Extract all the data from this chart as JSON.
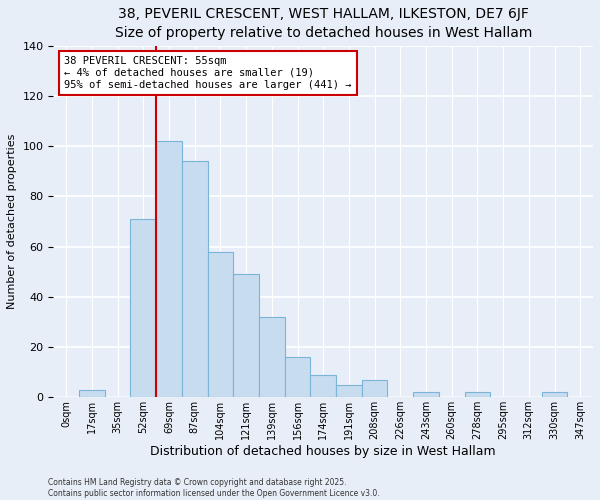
{
  "title": "38, PEVERIL CRESCENT, WEST HALLAM, ILKESTON, DE7 6JF",
  "subtitle": "Size of property relative to detached houses in West Hallam",
  "xlabel": "Distribution of detached houses by size in West Hallam",
  "ylabel": "Number of detached properties",
  "bin_labels": [
    "0sqm",
    "17sqm",
    "35sqm",
    "52sqm",
    "69sqm",
    "87sqm",
    "104sqm",
    "121sqm",
    "139sqm",
    "156sqm",
    "174sqm",
    "191sqm",
    "208sqm",
    "226sqm",
    "243sqm",
    "260sqm",
    "278sqm",
    "295sqm",
    "312sqm",
    "330sqm",
    "347sqm"
  ],
  "bar_values": [
    0,
    3,
    0,
    71,
    102,
    94,
    58,
    49,
    32,
    16,
    9,
    5,
    7,
    0,
    2,
    0,
    2,
    0,
    0,
    2,
    0
  ],
  "bar_color": "#c8dcf0",
  "bar_edge_color": "#7ab4d8",
  "vline_x": 3.5,
  "vline_color": "#cc0000",
  "annotation_text": "38 PEVERIL CRESCENT: 55sqm\n← 4% of detached houses are smaller (19)\n95% of semi-detached houses are larger (441) →",
  "annotation_box_edge": "#cc0000",
  "ylim": [
    0,
    140
  ],
  "yticks": [
    0,
    20,
    40,
    60,
    80,
    100,
    120,
    140
  ],
  "footer_line1": "Contains HM Land Registry data © Crown copyright and database right 2025.",
  "footer_line2": "Contains public sector information licensed under the Open Government Licence v3.0.",
  "bg_color": "#e8eef8",
  "plot_bg_color": "#e8eef8",
  "title_fontsize": 10,
  "subtitle_fontsize": 9,
  "xlabel_fontsize": 9,
  "ylabel_fontsize": 8
}
